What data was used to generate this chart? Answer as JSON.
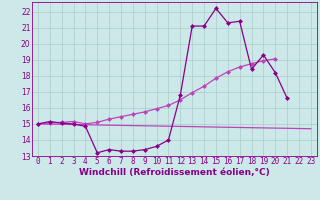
{
  "xlabel": "Windchill (Refroidissement éolien,°C)",
  "bg_color": "#cce8e8",
  "grid_color": "#aacccc",
  "line_color1": "#880088",
  "line_color2": "#bb44bb",
  "line_color3": "#cc55cc",
  "xlim": [
    -0.5,
    23.5
  ],
  "ylim": [
    13.0,
    22.6
  ],
  "yticks": [
    13,
    14,
    15,
    16,
    17,
    18,
    19,
    20,
    21,
    22
  ],
  "xticks": [
    0,
    1,
    2,
    3,
    4,
    5,
    6,
    7,
    8,
    9,
    10,
    11,
    12,
    13,
    14,
    15,
    16,
    17,
    18,
    19,
    20,
    21,
    22,
    23
  ],
  "series1_x": [
    0,
    1,
    2,
    3,
    4,
    5,
    6,
    7,
    8,
    9,
    10,
    11,
    12,
    13,
    14,
    15,
    16,
    17,
    18,
    19,
    20,
    21
  ],
  "series1_y": [
    15.0,
    15.15,
    15.05,
    15.0,
    14.85,
    13.2,
    13.4,
    13.3,
    13.3,
    13.4,
    13.6,
    14.0,
    16.8,
    21.1,
    21.1,
    22.2,
    21.3,
    21.4,
    18.4,
    19.3,
    18.2,
    16.6
  ],
  "series2_x": [
    0,
    1,
    2,
    3,
    4,
    5,
    6,
    7,
    8,
    9,
    10,
    11,
    12,
    13,
    14,
    15,
    16,
    17,
    18,
    19,
    20
  ],
  "series2_y": [
    15.0,
    15.05,
    15.1,
    15.15,
    15.0,
    15.1,
    15.3,
    15.45,
    15.6,
    15.75,
    15.95,
    16.15,
    16.5,
    16.95,
    17.35,
    17.85,
    18.25,
    18.55,
    18.75,
    18.95,
    19.05
  ],
  "series3_x": [
    0,
    23
  ],
  "series3_y": [
    15.0,
    14.7
  ],
  "marker_size": 2.5,
  "linewidth": 0.9,
  "tick_fontsize": 5.5,
  "label_fontsize": 6.5
}
